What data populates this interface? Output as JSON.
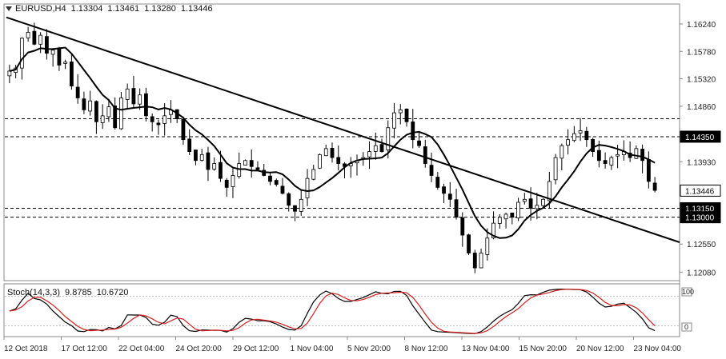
{
  "header": {
    "symbol": "EURUSD,H4",
    "open": "1.13304",
    "high": "1.13461",
    "low": "1.13280",
    "close": "1.13446"
  },
  "stochastic": {
    "label": "Stoch(14,3,3)",
    "main_value": "9.8785",
    "signal_value": "10.6720",
    "scale_top": "100",
    "scale_bottom": "0"
  },
  "price_axis": {
    "ticks": [
      "1.16240",
      "1.15780",
      "1.15320",
      "1.14860",
      "1.13930",
      "1.12550",
      "1.12080"
    ],
    "ylim": [
      1.1195,
      1.164
    ]
  },
  "price_labels": [
    {
      "name": "level-1-14350",
      "text": "1.14350",
      "value": 1.1435,
      "style": "dark"
    },
    {
      "name": "current-price",
      "text": "1.13446",
      "value": 1.13446,
      "style": "current"
    },
    {
      "name": "level-1-13150",
      "text": "1.13150",
      "value": 1.1315,
      "style": "dark"
    },
    {
      "name": "level-1-13000",
      "text": "1.13000",
      "value": 1.13,
      "style": "dark"
    }
  ],
  "horizontal_levels": [
    1.1465,
    1.1435,
    1.1315,
    1.13
  ],
  "trendline": {
    "from": [
      0,
      1.1635
    ],
    "to": [
      164,
      1.1258
    ]
  },
  "time_axis": [
    "12 Oct 2018",
    "17 Oct 12:00",
    "22 Oct 04:00",
    "24 Oct 20:00",
    "29 Oct 12:00",
    "1 Nov 04:00",
    "5 Nov 20:00",
    "8 Nov 12:00",
    "13 Nov 04:00",
    "15 Nov 20:00",
    "20 Nov 12:00",
    "23 Nov 04:00"
  ],
  "colors": {
    "candle": "#000000",
    "bull_body": "#ffffff",
    "bear_body": "#000000",
    "ma": "#000000",
    "stoch_main": "#000000",
    "stoch_signal": "#d42020",
    "current_label": "#ffffff",
    "dark_label": "#000000"
  },
  "chart_data": {
    "type": "candlestick",
    "title": "EURUSD,H4",
    "xlabel": "",
    "ylabel": "",
    "ylim": [
      1.1195,
      1.164
    ],
    "closes": [
      1.1545,
      1.155,
      1.16,
      1.161,
      1.159,
      1.1605,
      1.1575,
      1.158,
      1.1555,
      1.156,
      1.152,
      1.15,
      1.148,
      1.1495,
      1.146,
      1.147,
      1.1485,
      1.145,
      1.15,
      1.1515,
      1.149,
      1.1505,
      1.147,
      1.146,
      1.1455,
      1.147,
      1.148,
      1.1465,
      1.143,
      1.141,
      1.1395,
      1.1405,
      1.138,
      1.139,
      1.1365,
      1.135,
      1.137,
      1.139,
      1.1395,
      1.1385,
      1.138,
      1.137,
      1.136,
      1.1355,
      1.134,
      1.132,
      1.131,
      1.133,
      1.1365,
      1.138,
      1.1405,
      1.1415,
      1.14,
      1.139,
      1.1385,
      1.139,
      1.1395,
      1.14,
      1.141,
      1.142,
      1.141,
      1.145,
      1.1475,
      1.148,
      1.146,
      1.143,
      1.142,
      1.139,
      1.137,
      1.135,
      1.134,
      1.133,
      1.13,
      1.127,
      1.124,
      1.1215,
      1.124,
      1.1265,
      1.129,
      1.13,
      1.1305,
      1.13,
      1.1325,
      1.133,
      1.1315,
      1.132,
      1.133,
      1.136,
      1.14,
      1.142,
      1.143,
      1.144,
      1.1445,
      1.143,
      1.141,
      1.1395,
      1.139,
      1.14,
      1.1405,
      1.141,
      1.14,
      1.1415,
      1.1395,
      1.136,
      1.1345
    ]
  }
}
